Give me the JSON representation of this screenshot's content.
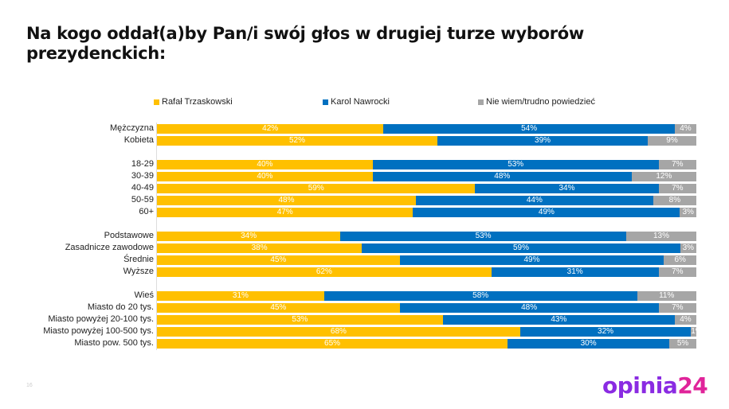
{
  "title": "Na kogo oddał(a)by Pan/i swój głos w drugiej turze wyborów prezydenckich:",
  "page_number": "16",
  "logo": "opinia24",
  "colors": {
    "Rafał Trzaskowski": "#FFC000",
    "Karol Nawrocki": "#0070C0",
    "Nie wiem/trudno powiedzieć": "#A6A6A6"
  },
  "chart_data": {
    "type": "bar",
    "orientation": "horizontal",
    "stacked": true,
    "normalized_100": true,
    "legend_position": "top",
    "grid": false,
    "categories": [
      "Mężczyzna",
      "Kobieta",
      "",
      "18-29",
      "30-39",
      "40-49",
      "50-59",
      "60+",
      "",
      "Podstawowe",
      "Zasadnicze zawodowe",
      "Średnie",
      "Wyższe",
      "",
      "Wieś",
      "Miasto do 20 tys.",
      "Miasto powyżej 20-100 tys.",
      "Miasto powyżej 100-500 tys.",
      "Miasto pow. 500 tys."
    ],
    "series": [
      {
        "name": "Rafał Trzaskowski",
        "values": [
          42,
          52,
          null,
          40,
          40,
          59,
          48,
          47,
          null,
          34,
          38,
          45,
          62,
          null,
          31,
          45,
          53,
          68,
          65
        ]
      },
      {
        "name": "Karol Nawrocki",
        "values": [
          54,
          39,
          null,
          53,
          48,
          34,
          44,
          49,
          null,
          53,
          59,
          49,
          31,
          null,
          58,
          48,
          43,
          32,
          30
        ]
      },
      {
        "name": "Nie wiem/trudno powiedzieć",
        "values": [
          4,
          9,
          null,
          7,
          12,
          7,
          8,
          3,
          null,
          13,
          3,
          6,
          7,
          null,
          11,
          7,
          4,
          1,
          5
        ]
      }
    ]
  }
}
